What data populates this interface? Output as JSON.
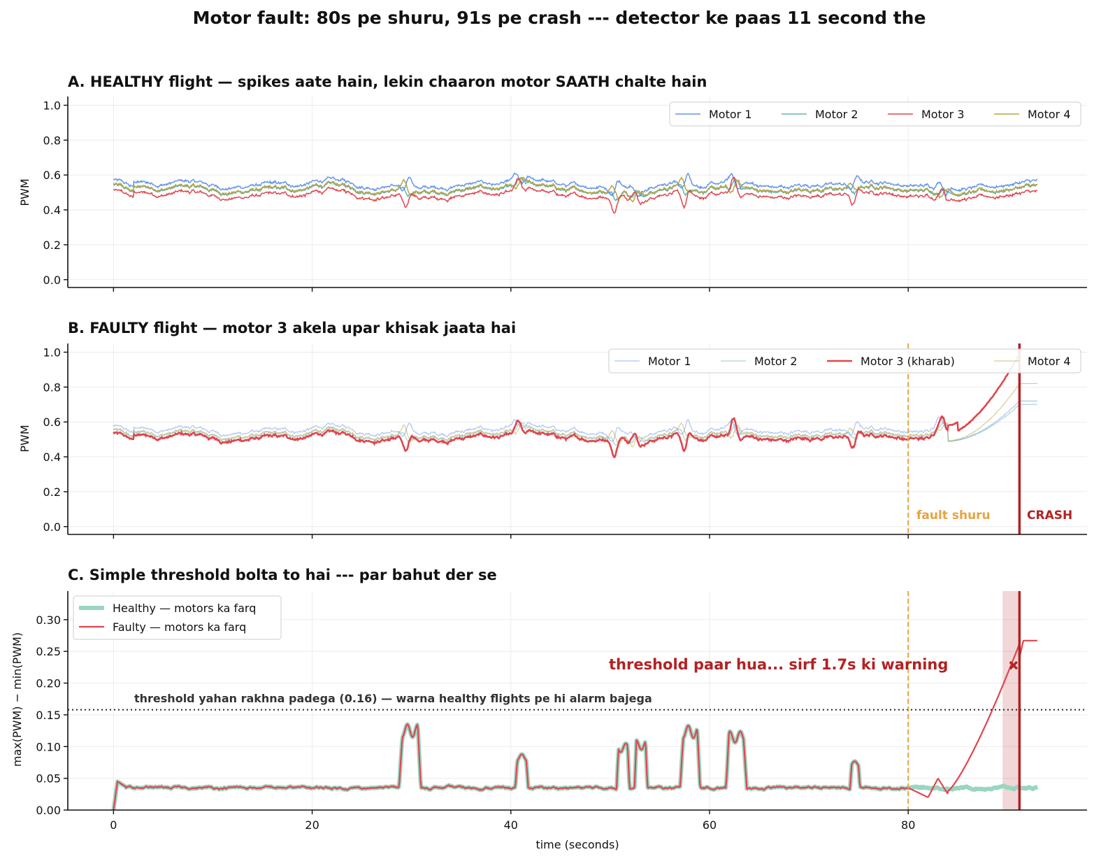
{
  "figure_title": "Motor fault: 80s pe shuru, 91s pe crash --- detector ke paas 11 second the",
  "colors": {
    "motor1": "#6495ED",
    "motor2": "#66B2B2",
    "motor3": "#E0464E",
    "motor4": "#B5A642",
    "fault_marker": "#E8A33D",
    "crash_marker": "#B22222",
    "healthy_diff": "#99D6C2"
  },
  "chart_data": [
    {
      "type": "line",
      "panel": "A",
      "title": "A.  HEALTHY flight  —  spikes aate hain, lekin chaaron motor SAATH chalte hain",
      "xlabel": "",
      "ylabel": "PWM",
      "xlim": [
        -4.6,
        98
      ],
      "ylim": [
        -0.045,
        1.05
      ],
      "yticks": [
        "0.0",
        "0.2",
        "0.4",
        "0.6",
        "0.8",
        "1.0"
      ],
      "grid": true,
      "legend": "top-right",
      "series": [
        {
          "name": "Motor 1",
          "offset": 0.03
        },
        {
          "name": "Motor 2",
          "offset": 0.0
        },
        {
          "name": "Motor 3",
          "offset": -0.03
        },
        {
          "name": "Motor 4",
          "offset": 0.005
        }
      ],
      "base_level": 0.515,
      "events": [
        {
          "t": 29.5,
          "amp": 0.07
        },
        {
          "t": 40.8,
          "amp": 0.05
        },
        {
          "t": 50.5,
          "amp": 0.07
        },
        {
          "t": 52.5,
          "amp": 0.05
        },
        {
          "t": 57.5,
          "amp": 0.07
        },
        {
          "t": 62.5,
          "amp": 0.07
        },
        {
          "t": 74.5,
          "amp": 0.05
        },
        {
          "t": 83.5,
          "amp": 0.05
        }
      ]
    },
    {
      "type": "line",
      "panel": "B",
      "title": "B.  FAULTY flight  —  motor 3 akela upar khisak jaata hai",
      "xlabel": "",
      "ylabel": "PWM",
      "xlim": [
        -4.6,
        98
      ],
      "ylim": [
        -0.045,
        1.05
      ],
      "yticks": [
        "0.0",
        "0.2",
        "0.4",
        "0.6",
        "0.8",
        "1.0"
      ],
      "grid": true,
      "legend": "top-right",
      "series": [
        {
          "name": "Motor 1",
          "end_value": 0.72
        },
        {
          "name": "Motor 2",
          "end_value": 0.7
        },
        {
          "name": "Motor 3  (kharab)",
          "end_value": 0.99
        },
        {
          "name": "Motor 4",
          "end_value": 0.82
        }
      ],
      "fault_start": 80,
      "crash_time": 91.2,
      "fault_label": "fault shuru",
      "crash_label": "CRASH"
    },
    {
      "type": "line",
      "panel": "C",
      "title": "C.  Simple threshold bolta to hai --- par bahut der se",
      "xlabel": "time (seconds)",
      "ylabel": "max(PWM) − min(PWM)",
      "xlim": [
        -4.6,
        98
      ],
      "ylim": [
        0,
        0.345
      ],
      "xticks": [
        "0",
        "20",
        "40",
        "60",
        "80"
      ],
      "yticks": [
        "0.00",
        "0.05",
        "0.10",
        "0.15",
        "0.20",
        "0.25",
        "0.30"
      ],
      "grid": true,
      "legend": "top-left",
      "series": [
        {
          "name": "Healthy — motors ka farq"
        },
        {
          "name": "Faulty — motors ka farq"
        }
      ],
      "baseline": 0.035,
      "bumps": [
        {
          "start": 28.9,
          "end": 30.8,
          "peak": 0.135
        },
        {
          "start": 40.6,
          "end": 41.6,
          "peak": 0.088
        },
        {
          "start": 50.8,
          "end": 51.8,
          "peak": 0.105
        },
        {
          "start": 52.6,
          "end": 53.6,
          "peak": 0.11
        },
        {
          "start": 57.2,
          "end": 58.9,
          "peak": 0.133
        },
        {
          "start": 61.8,
          "end": 63.6,
          "peak": 0.124
        },
        {
          "start": 74.3,
          "end": 75.0,
          "peak": 0.077
        }
      ],
      "threshold": 0.158,
      "threshold_label": "threshold yahan rakhna padega (0.16) — warna healthy flights pe hi alarm bajega",
      "warning_label": "threshold paar hua...  sirf 1.7s ki warning",
      "warning_point": {
        "t": 90.6,
        "value": 0.228
      },
      "warning_window": [
        89.5,
        91.2
      ],
      "crash_time": 91.2,
      "fault_start": 80,
      "faulty_end_value": 0.267
    }
  ]
}
